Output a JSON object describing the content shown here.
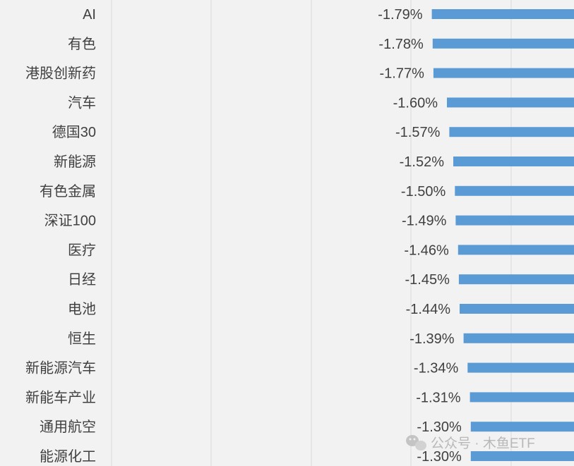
{
  "chart_data": {
    "type": "bar",
    "orientation": "horizontal",
    "categories": [
      "AI",
      "有色",
      "港股创新药",
      "汽车",
      "德国30",
      "新能源",
      "有色金属",
      "深证100",
      "医疗",
      "日经",
      "电池",
      "恒生",
      "新能源汽车",
      "新能车产业",
      "通用航空",
      "能源化工"
    ],
    "values": [
      -1.79,
      -1.78,
      -1.77,
      -1.6,
      -1.57,
      -1.52,
      -1.5,
      -1.49,
      -1.46,
      -1.45,
      -1.44,
      -1.39,
      -1.34,
      -1.31,
      -1.3,
      -1.3
    ],
    "value_labels": [
      "-1.79%",
      "-1.78%",
      "-1.77%",
      "-1.60%",
      "-1.57%",
      "-1.52%",
      "-1.50%",
      "-1.49%",
      "-1.46%",
      "-1.45%",
      "-1.44%",
      "-1.39%",
      "-1.34%",
      "-1.31%",
      "-1.30%",
      "-1.30%"
    ],
    "bar_color": "#5b9bd5",
    "grid": true
  },
  "watermark": {
    "text": "公众号 · 木鱼ETF"
  }
}
